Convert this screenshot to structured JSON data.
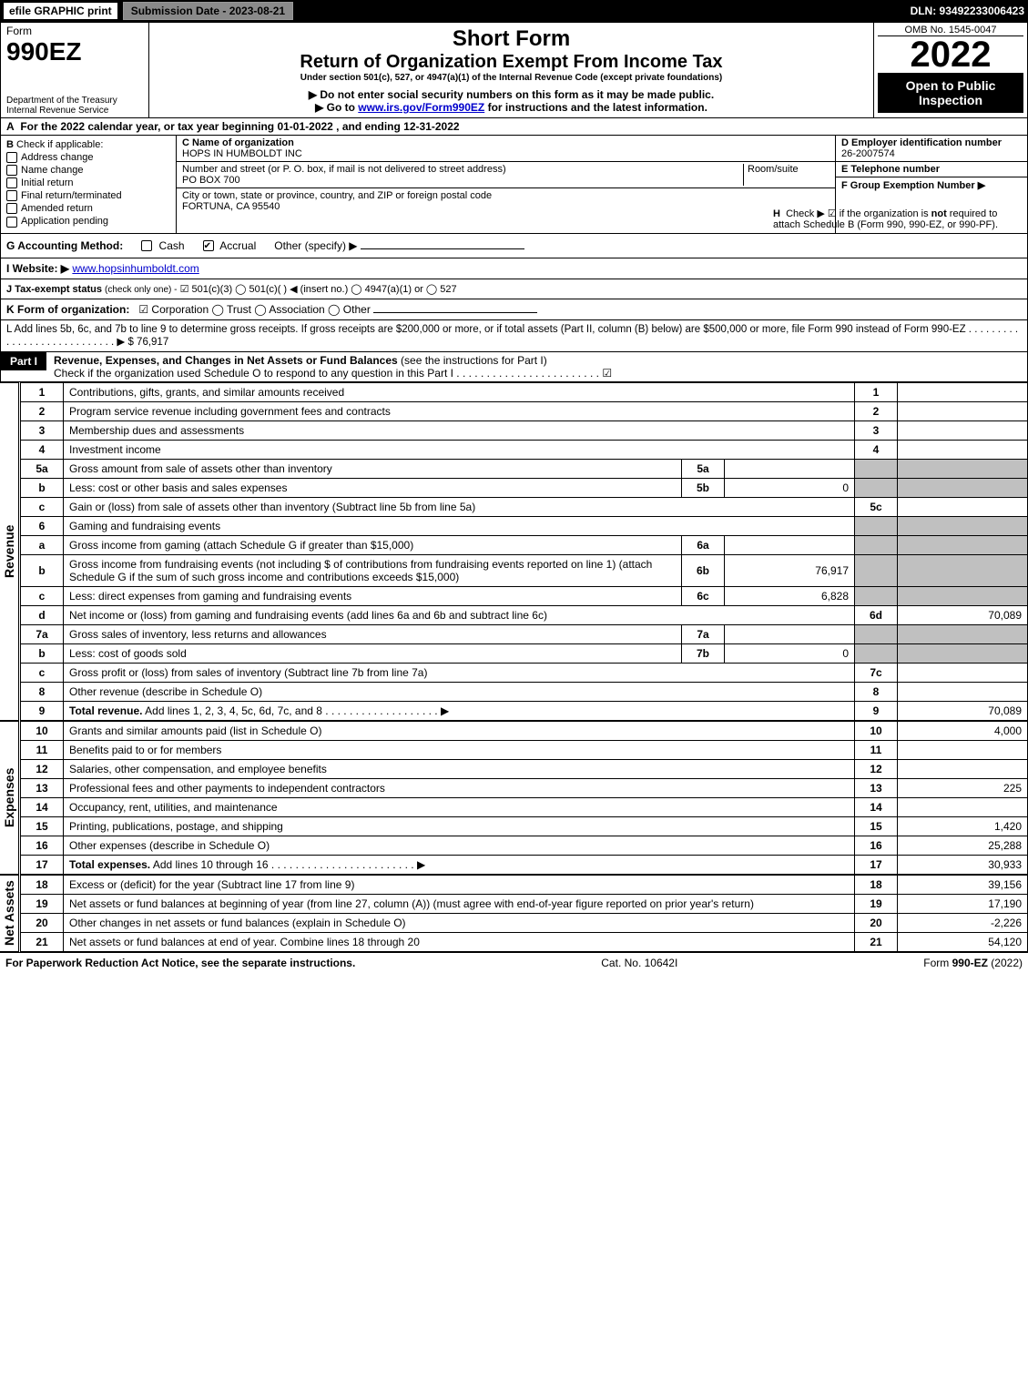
{
  "top": {
    "efile": "efile GRAPHIC print",
    "subdate": "Submission Date - 2023-08-21",
    "dln": "DLN: 93492233006423"
  },
  "header": {
    "form_label": "Form",
    "form_no": "990EZ",
    "dept": "Department of the Treasury\nInternal Revenue Service",
    "title1": "Short Form",
    "title2": "Return of Organization Exempt From Income Tax",
    "sub1": "Under section 501(c), 527, or 4947(a)(1) of the Internal Revenue Code (except private foundations)",
    "sub2": "▶ Do not enter social security numbers on this form as it may be made public.",
    "sub3_pre": "▶ Go to ",
    "sub3_link": "www.irs.gov/Form990EZ",
    "sub3_post": " for instructions and the latest information.",
    "omb": "OMB No. 1545-0047",
    "year": "2022",
    "open": "Open to Public Inspection"
  },
  "rowA": {
    "label": "A",
    "text": "For the 2022 calendar year, or tax year beginning 01-01-2022 , and ending 12-31-2022"
  },
  "colB": {
    "label": "B",
    "heading": "Check if applicable:",
    "items": [
      "Address change",
      "Name change",
      "Initial return",
      "Final return/terminated",
      "Amended return",
      "Application pending"
    ]
  },
  "colC": {
    "name_label": "C Name of organization",
    "name": "HOPS IN HUMBOLDT INC",
    "street_label": "Number and street (or P. O. box, if mail is not delivered to street address)",
    "street": "PO BOX 700",
    "room_label": "Room/suite",
    "city_label": "City or town, state or province, country, and ZIP or foreign postal code",
    "city": "FORTUNA, CA  95540"
  },
  "colD": {
    "ein_label": "D Employer identification number",
    "ein": "26-2007574",
    "tel_label": "E Telephone number",
    "grp_label": "F Group Exemption Number   ▶"
  },
  "rowG": {
    "label": "G Accounting Method:",
    "opts": [
      "Cash",
      "Accrual",
      "Other (specify) ▶"
    ],
    "checked": 1
  },
  "rowH": {
    "label": "H",
    "text1": "Check ▶ ☑ if the organization is ",
    "not": "not",
    "text2": " required to attach Schedule B (Form 990, 990-EZ, or 990-PF)."
  },
  "rowI": {
    "label": "I Website: ▶",
    "value": "www.hopsinhumboldt.com"
  },
  "rowJ": {
    "label": "J Tax-exempt status",
    "sub": "(check only one) -",
    "opts": "☑ 501(c)(3)  ◯ 501(c)(  ) ◀ (insert no.)  ◯ 4947(a)(1) or  ◯ 527"
  },
  "rowK": {
    "label": "K Form of organization:",
    "opts": "☑ Corporation  ◯ Trust  ◯ Association  ◯ Other"
  },
  "rowL": {
    "text": "L Add lines 5b, 6c, and 7b to line 9 to determine gross receipts. If gross receipts are $200,000 or more, or if total assets (Part II, column (B) below) are $500,000 or more, file Form 990 instead of Form 990-EZ . . . . . . . . . . . . . . . . . . . . . . . . . . . . ▶ $ 76,917"
  },
  "part1": {
    "label": "Part I",
    "title": "Revenue, Expenses, and Changes in Net Assets or Fund Balances",
    "paren": "(see the instructions for Part I)",
    "check": "Check if the organization used Schedule O to respond to any question in this Part I . . . . . . . . . . . . . . . . . . . . . . . . ☑"
  },
  "revenue": {
    "vlabel": "Revenue",
    "lines": [
      {
        "no": "1",
        "desc": "Contributions, gifts, grants, and similar amounts received",
        "rlab": "1",
        "rval": ""
      },
      {
        "no": "2",
        "desc": "Program service revenue including government fees and contracts",
        "rlab": "2",
        "rval": ""
      },
      {
        "no": "3",
        "desc": "Membership dues and assessments",
        "rlab": "3",
        "rval": ""
      },
      {
        "no": "4",
        "desc": "Investment income",
        "rlab": "4",
        "rval": ""
      },
      {
        "no": "5a",
        "desc": "Gross amount from sale of assets other than inventory",
        "mlab": "5a",
        "mval": "",
        "shadeR": true
      },
      {
        "no": "b",
        "desc": "Less: cost or other basis and sales expenses",
        "mlab": "5b",
        "mval": "0",
        "shadeR": true
      },
      {
        "no": "c",
        "desc": "Gain or (loss) from sale of assets other than inventory (Subtract line 5b from line 5a)",
        "rlab": "5c",
        "rval": ""
      },
      {
        "no": "6",
        "desc": "Gaming and fundraising events",
        "shadeR": true,
        "noMid": true
      },
      {
        "no": "a",
        "desc": "Gross income from gaming (attach Schedule G if greater than $15,000)",
        "mlab": "6a",
        "mval": "",
        "shadeR": true
      },
      {
        "no": "b",
        "desc": "Gross income from fundraising events (not including $                of contributions from fundraising events reported on line 1) (attach Schedule G if the sum of such gross income and contributions exceeds $15,000)",
        "mlab": "6b",
        "mval": "76,917",
        "shadeR": true
      },
      {
        "no": "c",
        "desc": "Less: direct expenses from gaming and fundraising events",
        "mlab": "6c",
        "mval": "6,828",
        "shadeR": true
      },
      {
        "no": "d",
        "desc": "Net income or (loss) from gaming and fundraising events (add lines 6a and 6b and subtract line 6c)",
        "rlab": "6d",
        "rval": "70,089"
      },
      {
        "no": "7a",
        "desc": "Gross sales of inventory, less returns and allowances",
        "mlab": "7a",
        "mval": "",
        "shadeR": true
      },
      {
        "no": "b",
        "desc": "Less: cost of goods sold",
        "mlab": "7b",
        "mval": "0",
        "shadeR": true
      },
      {
        "no": "c",
        "desc": "Gross profit or (loss) from sales of inventory (Subtract line 7b from line 7a)",
        "rlab": "7c",
        "rval": ""
      },
      {
        "no": "8",
        "desc": "Other revenue (describe in Schedule O)",
        "rlab": "8",
        "rval": ""
      },
      {
        "no": "9",
        "desc": "Total revenue. Add lines 1, 2, 3, 4, 5c, 6d, 7c, and 8   . . . . . . . . . . . . . . . . . . . ▶",
        "bold": true,
        "rlab": "9",
        "rval": "70,089"
      }
    ]
  },
  "expenses": {
    "vlabel": "Expenses",
    "lines": [
      {
        "no": "10",
        "desc": "Grants and similar amounts paid (list in Schedule O)",
        "rlab": "10",
        "rval": "4,000"
      },
      {
        "no": "11",
        "desc": "Benefits paid to or for members",
        "rlab": "11",
        "rval": ""
      },
      {
        "no": "12",
        "desc": "Salaries, other compensation, and employee benefits",
        "rlab": "12",
        "rval": ""
      },
      {
        "no": "13",
        "desc": "Professional fees and other payments to independent contractors",
        "rlab": "13",
        "rval": "225"
      },
      {
        "no": "14",
        "desc": "Occupancy, rent, utilities, and maintenance",
        "rlab": "14",
        "rval": ""
      },
      {
        "no": "15",
        "desc": "Printing, publications, postage, and shipping",
        "rlab": "15",
        "rval": "1,420"
      },
      {
        "no": "16",
        "desc": "Other expenses (describe in Schedule O)",
        "rlab": "16",
        "rval": "25,288"
      },
      {
        "no": "17",
        "desc": "Total expenses. Add lines 10 through 16   . . . . . . . . . . . . . . . . . . . . . . . . ▶",
        "bold": true,
        "rlab": "17",
        "rval": "30,933"
      }
    ]
  },
  "netassets": {
    "vlabel": "Net Assets",
    "lines": [
      {
        "no": "18",
        "desc": "Excess or (deficit) for the year (Subtract line 17 from line 9)",
        "rlab": "18",
        "rval": "39,156"
      },
      {
        "no": "19",
        "desc": "Net assets or fund balances at beginning of year (from line 27, column (A)) (must agree with end-of-year figure reported on prior year's return)",
        "rlab": "19",
        "rval": "17,190"
      },
      {
        "no": "20",
        "desc": "Other changes in net assets or fund balances (explain in Schedule O)",
        "rlab": "20",
        "rval": "-2,226"
      },
      {
        "no": "21",
        "desc": "Net assets or fund balances at end of year. Combine lines 18 through 20",
        "rlab": "21",
        "rval": "54,120"
      }
    ]
  },
  "footer": {
    "left": "For Paperwork Reduction Act Notice, see the separate instructions.",
    "mid": "Cat. No. 10642I",
    "right": "Form 990-EZ (2022)"
  }
}
